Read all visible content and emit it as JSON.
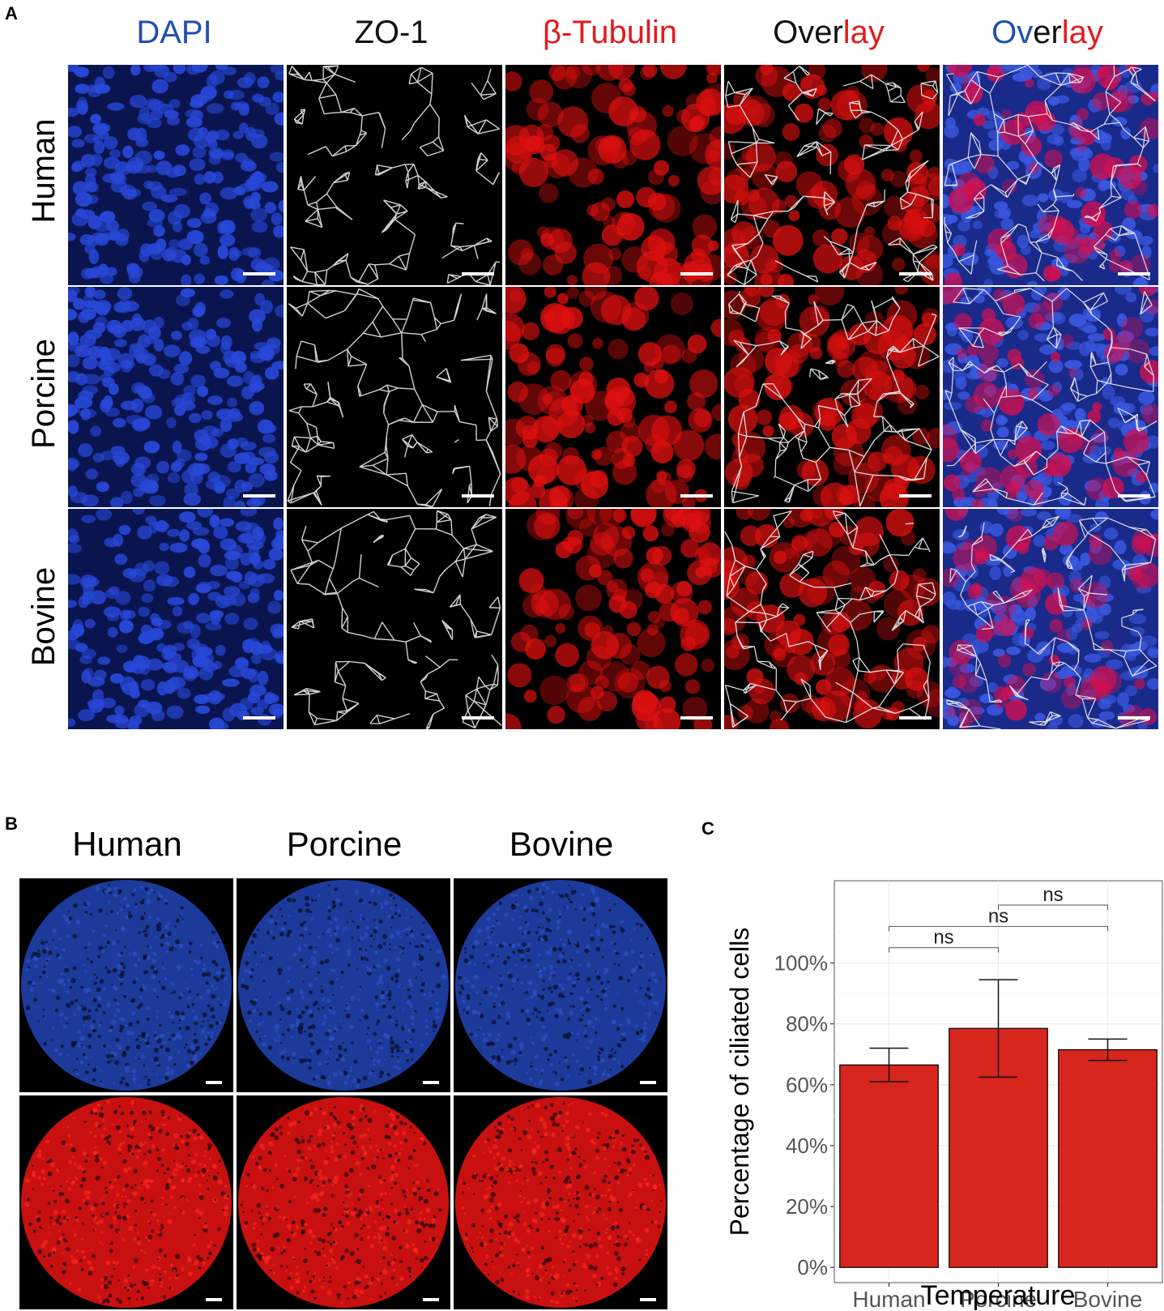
{
  "panel_a": {
    "label": "A",
    "columns": [
      {
        "text": "DAPI",
        "color": "#1f4fb4"
      },
      {
        "text": "ZO-1",
        "color": "#111111"
      },
      {
        "text": "β-Tubulin",
        "color": "#e41a1c"
      },
      {
        "parts": [
          {
            "text": "Over",
            "color": "#111111"
          },
          {
            "text": "lay",
            "color": "#e41a1c"
          }
        ]
      },
      {
        "parts": [
          {
            "text": "Ov",
            "color": "#1f4fb4"
          },
          {
            "text": "er",
            "color": "#111111"
          },
          {
            "text": "lay",
            "color": "#e41a1c"
          }
        ]
      }
    ],
    "rows": [
      "Human",
      "Porcine",
      "Bovine"
    ]
  },
  "panel_b": {
    "label": "B",
    "columns": [
      "Human",
      "Porcine",
      "Bovine"
    ]
  },
  "panel_c": {
    "label": "C",
    "chart_data": {
      "type": "bar",
      "categories": [
        "Human",
        "Porcine",
        "Bovine"
      ],
      "values": [
        66.5,
        78.5,
        71.5
      ],
      "error_low": [
        61,
        62.5,
        68
      ],
      "error_high": [
        72,
        94.5,
        75
      ],
      "xlabel": "Temperature",
      "ylabel": "Percentage of ciliated cells",
      "ylim": [
        -5,
        127
      ],
      "yticks": [
        0,
        20,
        40,
        60,
        80,
        100
      ],
      "ytick_labels": [
        "0%",
        "20%",
        "40%",
        "60%",
        "80%",
        "100%"
      ],
      "bar_color": "#d7261e",
      "grid": true,
      "significance": [
        {
          "from": "Human",
          "to": "Porcine",
          "label": "ns",
          "y": 105
        },
        {
          "from": "Human",
          "to": "Bovine",
          "label": "ns",
          "y": 112
        },
        {
          "from": "Porcine",
          "to": "Bovine",
          "label": "ns",
          "y": 119
        }
      ]
    }
  }
}
